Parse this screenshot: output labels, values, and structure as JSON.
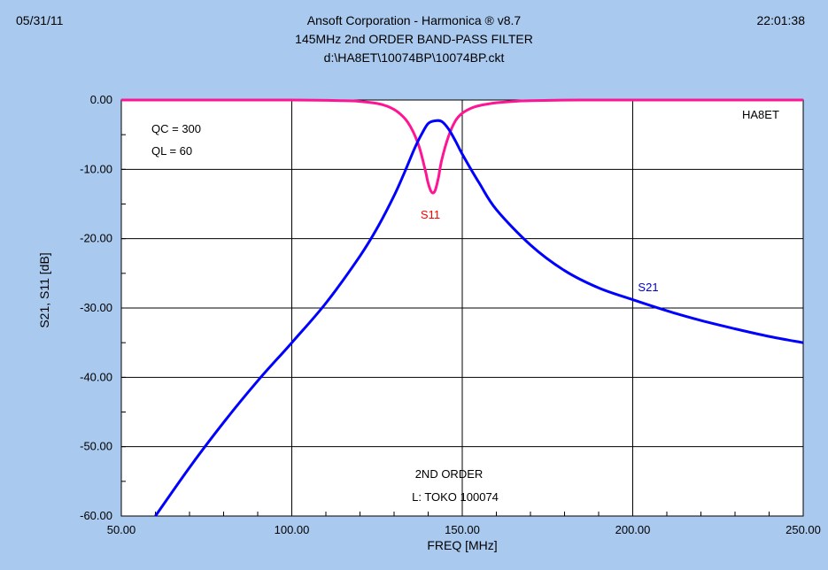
{
  "header": {
    "date": "05/31/11",
    "time": "22:01:38",
    "title_line1": "Ansoft Corporation - Harmonica ® v8.7",
    "title_line2": "145MHz 2nd ORDER BAND-PASS FILTER",
    "title_line3": "d:\\HA8ET\\10074BP\\10074BP.ckt"
  },
  "chart_data": {
    "type": "line",
    "xlabel": "FREQ [MHz]",
    "ylabel": "S21,  S11 [dB]",
    "xlim": [
      50,
      250
    ],
    "ylim": [
      -60,
      0
    ],
    "x_ticks": [
      "50.00",
      "100.00",
      "150.00",
      "200.00",
      "250.00"
    ],
    "y_ticks": [
      "0.00",
      "-10.00",
      "-20.00",
      "-30.00",
      "-40.00",
      "-50.00",
      "-60.00"
    ],
    "x_tick_values": [
      50,
      100,
      150,
      200,
      250
    ],
    "y_tick_values": [
      0,
      -10,
      -20,
      -30,
      -40,
      -50,
      -60
    ],
    "grid": true,
    "series": [
      {
        "name": "S21",
        "color": "#0000ff",
        "x": [
          60,
          70,
          80,
          90,
          100,
          110,
          120,
          125,
          130,
          133,
          136,
          138,
          140,
          142,
          144,
          146,
          148,
          150,
          155,
          160,
          170,
          180,
          190,
          200,
          210,
          220,
          230,
          240,
          250
        ],
        "y": [
          -60,
          -53,
          -46.5,
          -40.5,
          -35,
          -29.3,
          -22.5,
          -18.5,
          -13.8,
          -10.5,
          -7,
          -5,
          -3.4,
          -3,
          -3.1,
          -4.2,
          -5.9,
          -7.8,
          -12,
          -15.8,
          -20.9,
          -24.6,
          -27.1,
          -28.8,
          -30.4,
          -31.8,
          -33,
          -34.1,
          -35
        ]
      },
      {
        "name": "S11",
        "color": "#ff1493",
        "x": [
          50,
          100,
          115,
          120,
          125,
          128,
          131,
          134,
          137,
          139,
          140,
          141,
          142,
          143,
          144,
          146,
          148,
          150,
          153,
          156,
          160,
          165,
          170,
          185,
          200,
          250
        ],
        "y": [
          0,
          0,
          -0.1,
          -0.2,
          -0.5,
          -0.9,
          -1.7,
          -3.2,
          -6.2,
          -9.8,
          -12,
          -13.3,
          -13.1,
          -11.2,
          -8.6,
          -5.2,
          -3,
          -1.9,
          -1.1,
          -0.7,
          -0.4,
          -0.2,
          -0.1,
          0,
          0,
          0
        ]
      }
    ],
    "annotations": {
      "qc": "QC = 300",
      "ql": "QL = 60",
      "author": "HA8ET",
      "order": "2ND ORDER",
      "inductor": "L: TOKO 100074"
    }
  }
}
